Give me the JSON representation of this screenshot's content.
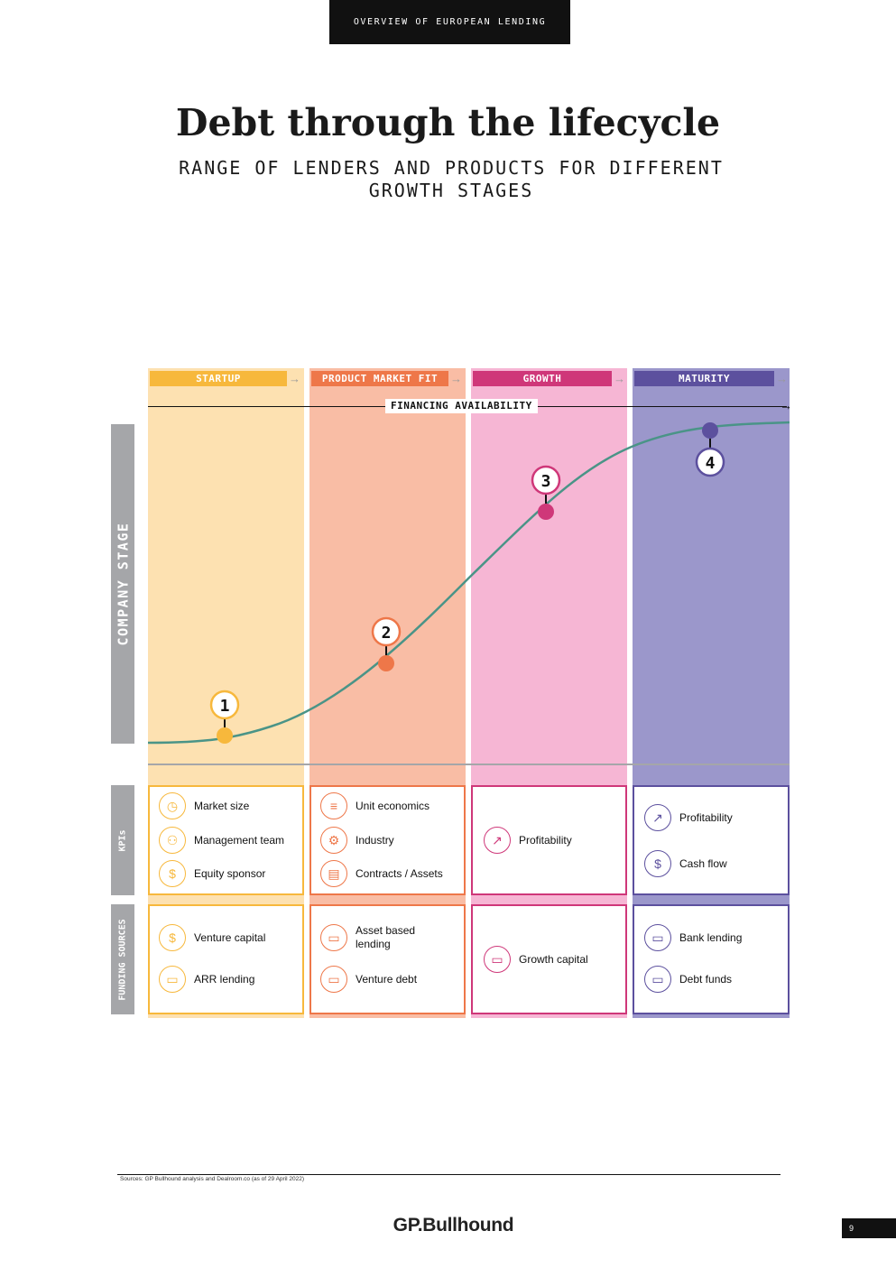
{
  "header": {
    "section": "OVERVIEW OF EUROPEAN LENDING"
  },
  "title": "Debt through the lifecycle",
  "subtitle": "RANGE OF LENDERS AND PRODUCTS FOR DIFFERENT GROWTH STAGES",
  "financing_label": "FINANCING AVAILABILITY",
  "side_labels": {
    "stage": "COMPANY STAGE",
    "kpis": "KPIs",
    "funding": "FUNDING SOURCES"
  },
  "stages": [
    {
      "label": "STARTUP",
      "marker": "1",
      "color": "#f7b83c",
      "bg": "#fde1b1",
      "kpis": [
        "Market size",
        "Management team",
        "Equity sponsor"
      ],
      "funding": [
        "Venture capital",
        "ARR lending"
      ]
    },
    {
      "label": "PRODUCT MARKET FIT",
      "marker": "2",
      "color": "#ee7749",
      "bg": "#f9bda5",
      "kpis": [
        "Unit economics",
        "Industry",
        "Contracts / Assets"
      ],
      "funding": [
        "Asset based lending",
        "Venture debt"
      ]
    },
    {
      "label": "GROWTH",
      "marker": "3",
      "color": "#cf3779",
      "bg": "#f6b6d4",
      "kpis": [
        "Profitability"
      ],
      "funding": [
        "Growth capital"
      ]
    },
    {
      "label": "MATURITY",
      "marker": "4",
      "color": "#5c509e",
      "bg": "#9b97cb",
      "kpis": [
        "Profitability",
        "Cash flow"
      ],
      "funding": [
        "Bank lending",
        "Debt funds"
      ]
    }
  ],
  "curve_color": "#4a9487",
  "source": "Sources: GP Bullhound analysis and Dealroom.co (as of 29 April 2022)",
  "logo": "GP.Bullhound",
  "page_number": "9"
}
